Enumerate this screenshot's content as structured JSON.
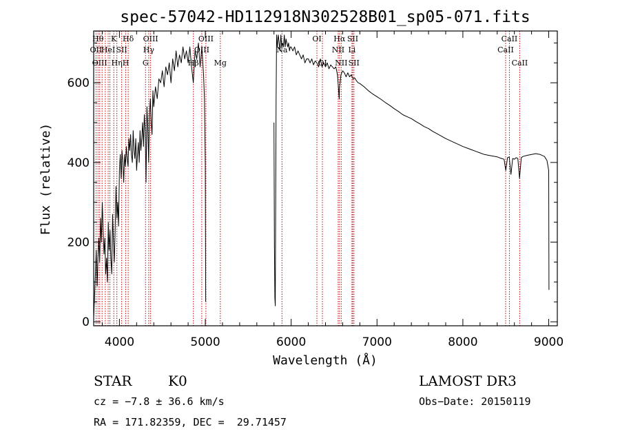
{
  "chart_data": {
    "type": "line",
    "title": "spec-57042-HD112918N302528B01_sp05-071.fits",
    "xlabel": "Wavelength (Å)",
    "ylabel": "Flux (relative)",
    "xlim": [
      3700,
      9100
    ],
    "ylim": [
      -10,
      730
    ],
    "x_ticks": [
      4000,
      5000,
      6000,
      7000,
      8000,
      9000
    ],
    "y_ticks": [
      0,
      200,
      400,
      600
    ],
    "grid": false,
    "series": [
      {
        "x": [
          3700,
          3710,
          3720,
          3730,
          3740,
          3750,
          3760,
          3770,
          3780,
          3790,
          3800,
          3810,
          3820,
          3830,
          3840,
          3850,
          3860,
          3870,
          3880,
          3890,
          3900,
          3910,
          3920,
          3930,
          3940,
          3950,
          3960,
          3970,
          3980,
          3990,
          4000,
          4010,
          4020,
          4030,
          4040,
          4050,
          4060,
          4070,
          4080,
          4090,
          4100,
          4110,
          4120,
          4130,
          4140,
          4150,
          4160,
          4170,
          4180,
          4190,
          4200,
          4210,
          4220,
          4230,
          4240,
          4250,
          4260,
          4270,
          4280,
          4290,
          4300,
          4310,
          4320,
          4330,
          4340,
          4350,
          4360,
          4370,
          4380,
          4390,
          4400,
          4420,
          4440,
          4460,
          4480,
          4500,
          4520,
          4540,
          4560,
          4580,
          4600,
          4620,
          4640,
          4660,
          4680,
          4700,
          4720,
          4740,
          4760,
          4780,
          4800,
          4820,
          4840,
          4860,
          4880,
          4900,
          4920,
          4940,
          4960,
          4980,
          4990,
          5000,
          5005
        ],
        "y": [
          10,
          60,
          120,
          180,
          90,
          160,
          210,
          150,
          260,
          200,
          300,
          230,
          170,
          210,
          120,
          160,
          100,
          250,
          180,
          230,
          160,
          120,
          270,
          200,
          150,
          230,
          340,
          260,
          300,
          240,
          380,
          420,
          360,
          430,
          400,
          350,
          420,
          390,
          440,
          410,
          390,
          460,
          430,
          470,
          420,
          400,
          480,
          430,
          410,
          460,
          380,
          420,
          450,
          400,
          480,
          430,
          460,
          500,
          440,
          520,
          480,
          350,
          540,
          490,
          400,
          520,
          560,
          500,
          470,
          580,
          540,
          590,
          560,
          610,
          600,
          630,
          590,
          640,
          620,
          650,
          600,
          660,
          630,
          680,
          640,
          670,
          650,
          690,
          660,
          680,
          650,
          690,
          640,
          600,
          680,
          660,
          700,
          640,
          690,
          620,
          560,
          400,
          50
        ]
      },
      {
        "x": [
          5800,
          5805,
          5810,
          5815,
          5820,
          5825,
          5830,
          5835,
          5840,
          5845,
          5850,
          5860,
          5870,
          5880,
          5890,
          5900,
          5910,
          5920,
          5930,
          5940,
          5950,
          5960,
          5970,
          5980,
          5990,
          6000,
          6020,
          6040,
          6060,
          6080,
          6100,
          6120,
          6140,
          6160,
          6180,
          6200,
          6220,
          6240,
          6260,
          6280,
          6300,
          6320,
          6340,
          6360,
          6380,
          6400,
          6420,
          6440,
          6460,
          6480,
          6500,
          6520,
          6540,
          6560,
          6563,
          6570,
          6580,
          6600,
          6620,
          6640,
          6660,
          6680,
          6700,
          6720,
          6740,
          6760,
          6780,
          6800,
          6850,
          6900,
          6950,
          7000,
          7050,
          7100,
          7150,
          7200,
          7250,
          7300,
          7350,
          7400,
          7450,
          7500,
          7550,
          7600,
          7650,
          7700,
          7750,
          7800,
          7850,
          7900,
          7950,
          8000,
          8050,
          8100,
          8150,
          8200,
          8250,
          8300,
          8350,
          8400,
          8450,
          8480,
          8500,
          8520,
          8540,
          8560,
          8580,
          8600,
          8620,
          8640,
          8660,
          8680,
          8700,
          8750,
          8800,
          8850,
          8900,
          8950,
          8980,
          9000,
          9003
        ],
        "y": [
          500,
          200,
          60,
          40,
          300,
          560,
          720,
          700,
          690,
          710,
          720,
          700,
          680,
          720,
          690,
          700,
          690,
          720,
          690,
          710,
          700,
          690,
          700,
          680,
          690,
          690,
          680,
          690,
          670,
          680,
          670,
          660,
          670,
          650,
          660,
          660,
          650,
          660,
          645,
          655,
          650,
          640,
          660,
          640,
          650,
          640,
          650,
          635,
          645,
          640,
          635,
          640,
          620,
          560,
          590,
          600,
          620,
          630,
          625,
          615,
          625,
          615,
          620,
          610,
          612,
          605,
          600,
          598,
          590,
          580,
          572,
          565,
          558,
          550,
          543,
          535,
          528,
          520,
          515,
          510,
          503,
          497,
          490,
          485,
          478,
          472,
          466,
          460,
          455,
          450,
          445,
          440,
          436,
          432,
          428,
          424,
          420,
          418,
          416,
          414,
          410,
          408,
          380,
          412,
          414,
          370,
          410,
          408,
          412,
          410,
          360,
          412,
          415,
          418,
          420,
          422,
          420,
          415,
          405,
          380,
          80
        ]
      }
    ],
    "lines": [
      {
        "wl": 3727,
        "label": "OII",
        "row": 2
      },
      {
        "wl": 3750,
        "label": "Hθ",
        "row": 1
      },
      {
        "wl": 3770,
        "label": "OIII",
        "row": 3
      },
      {
        "wl": 3798,
        "label": "",
        "row": 0
      },
      {
        "wl": 3835,
        "label": "",
        "row": 0
      },
      {
        "wl": 3869,
        "label": "HeI",
        "row": 2
      },
      {
        "wl": 3889,
        "label": "",
        "row": 0
      },
      {
        "wl": 3934,
        "label": "K",
        "row": 1
      },
      {
        "wl": 3970,
        "label": "Hη",
        "row": 3
      },
      {
        "wl": 4026,
        "label": "SII",
        "row": 2
      },
      {
        "wl": 4073,
        "label": "H",
        "row": 3
      },
      {
        "wl": 4102,
        "label": "Hδ",
        "row": 1
      },
      {
        "wl": 4304,
        "label": "G",
        "row": 3
      },
      {
        "wl": 4341,
        "label": "Hγ",
        "row": 2
      },
      {
        "wl": 4363,
        "label": "OIII",
        "row": 1
      },
      {
        "wl": 4861,
        "label": "Hβ",
        "row": 3
      },
      {
        "wl": 4959,
        "label": "OIII",
        "row": 2
      },
      {
        "wl": 5007,
        "label": "OIII",
        "row": 1
      },
      {
        "wl": 5175,
        "label": "Mg",
        "row": 3
      },
      {
        "wl": 5893,
        "label": "Na",
        "row": 2
      },
      {
        "wl": 6300,
        "label": "OI",
        "row": 1
      },
      {
        "wl": 6364,
        "label": "OI",
        "row": 3
      },
      {
        "wl": 6548,
        "label": "NII",
        "row": 2
      },
      {
        "wl": 6563,
        "label": "Hα",
        "row": 1
      },
      {
        "wl": 6583,
        "label": "NII",
        "row": 3
      },
      {
        "wl": 6708,
        "label": "Li",
        "row": 2
      },
      {
        "wl": 6717,
        "label": "SII",
        "row": 1
      },
      {
        "wl": 6731,
        "label": "SII",
        "row": 3
      },
      {
        "wl": 8498,
        "label": "CaII",
        "row": 2
      },
      {
        "wl": 8542,
        "label": "CaII",
        "row": 1
      },
      {
        "wl": 8662,
        "label": "CaII",
        "row": 3
      }
    ]
  },
  "info": {
    "object_class": "STAR",
    "subclass": "K0",
    "survey": "LAMOST DR3",
    "cz": "cz = −7.8 ± 36.6 km/s",
    "obs_date": "Obs−Date: 20150119",
    "coords": "RA = 171.82359, DEC =  29.71457"
  },
  "colors": {
    "spectrum": "#000000",
    "line_markers": "#c00000"
  }
}
